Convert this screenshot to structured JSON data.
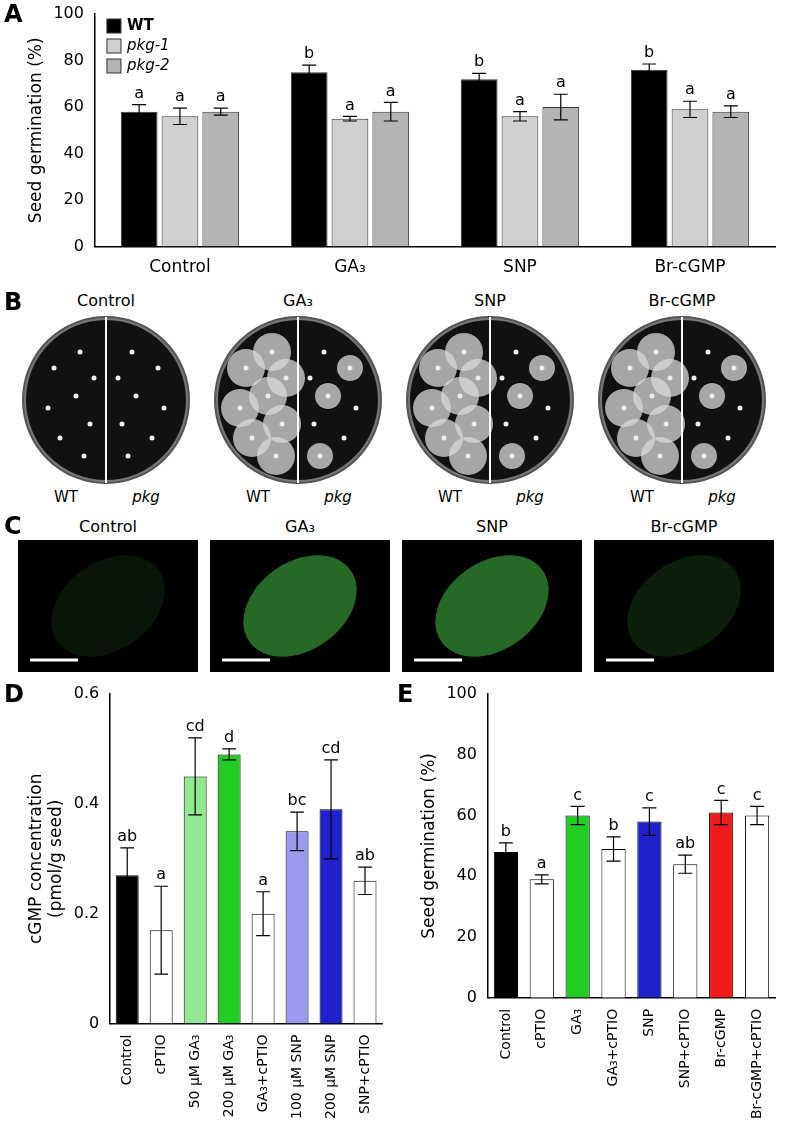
{
  "chart_data": [
    {
      "panel_label": "A",
      "type": "bar",
      "y_label": [
        "Seed germination (%)"
      ],
      "categories": [
        "Control",
        "GA₃",
        "SNP",
        "Br-cGMP"
      ],
      "series": [
        {
          "name": "WT",
          "color": "#000000",
          "values": [
            58,
            75,
            72,
            76
          ],
          "errors": [
            3,
            3,
            2.5,
            2.5
          ],
          "letters": [
            "a",
            "b",
            "b",
            "b"
          ]
        },
        {
          "name": "pkg-1",
          "color": "#d0d0d0",
          "values": [
            56,
            55,
            56,
            59
          ],
          "errors": [
            3.5,
            1,
            2,
            3.5
          ],
          "letters": [
            "a",
            "a",
            "a",
            "a"
          ]
        },
        {
          "name": "pkg-2",
          "color": "#b4b4b4",
          "values": [
            58,
            58,
            60,
            58
          ],
          "errors": [
            1.5,
            4,
            5.5,
            2.5
          ],
          "letters": [
            "a",
            "a",
            "a",
            "a"
          ]
        }
      ],
      "ylim": [
        0,
        100
      ],
      "yticks": [
        0,
        20,
        40,
        60,
        80,
        100
      ],
      "legend": "top-left",
      "grid": false
    },
    {
      "panel_label": "D",
      "type": "bar",
      "y_label": [
        "cGMP concentration",
        "(pmol/g seed)"
      ],
      "categories": [
        "Control",
        "cPTIO",
        "50 µM GA₃",
        "200 µM GA₃",
        "GA₃+cPTIO",
        "100 µM SNP",
        "200 µM SNP",
        "SNP+cPTIO"
      ],
      "values": [
        0.27,
        0.17,
        0.45,
        0.49,
        0.2,
        0.35,
        0.39,
        0.26
      ],
      "errors": [
        0.05,
        0.08,
        0.07,
        0.01,
        0.04,
        0.035,
        0.09,
        0.025
      ],
      "letters": [
        "ab",
        "a",
        "cd",
        "d",
        "a",
        "bc",
        "cd",
        "ab"
      ],
      "colors": [
        "#000000",
        "#ffffff",
        "#90e890",
        "#22cc22",
        "#ffffff",
        "#9a9aee",
        "#2020cc",
        "#ffffff"
      ],
      "ylim": [
        0,
        0.6
      ],
      "yticks": [
        0,
        0.2,
        0.4,
        0.6
      ],
      "grid": false
    },
    {
      "panel_label": "E",
      "type": "bar",
      "y_label": [
        "Seed germination (%)"
      ],
      "categories": [
        "Control",
        "cPTIO",
        "GA₃",
        "GA₃+cPTIO",
        "SNP",
        "SNP+cPTIO",
        "Br-cGMP",
        "Br-cGMP+cPTIO"
      ],
      "values": [
        48,
        39,
        60,
        49,
        58,
        44,
        61,
        60
      ],
      "errors": [
        3,
        1.5,
        3,
        4,
        4.5,
        3,
        4,
        3
      ],
      "letters": [
        "b",
        "a",
        "c",
        "b",
        "c",
        "ab",
        "c",
        "c"
      ],
      "colors": [
        "#000000",
        "#ffffff",
        "#22cc22",
        "#ffffff",
        "#2020cc",
        "#ffffff",
        "#ee1c1c",
        "#ffffff"
      ],
      "ylim": [
        0,
        100
      ],
      "yticks": [
        0,
        20,
        40,
        60,
        80,
        100
      ],
      "grid": false
    }
  ],
  "images": [
    {
      "panel_label": "B",
      "plates": [
        {
          "title": "Control",
          "left": "WT",
          "right": "pkg"
        },
        {
          "title": "GA₃",
          "left": "WT",
          "right": "pkg"
        },
        {
          "title": "SNP",
          "left": "WT",
          "right": "pkg"
        },
        {
          "title": "Br-cGMP",
          "left": "WT",
          "right": "pkg"
        }
      ]
    },
    {
      "panel_label": "C",
      "titles": [
        "Control",
        "GA₃",
        "SNP",
        "Br-cGMP"
      ]
    }
  ]
}
